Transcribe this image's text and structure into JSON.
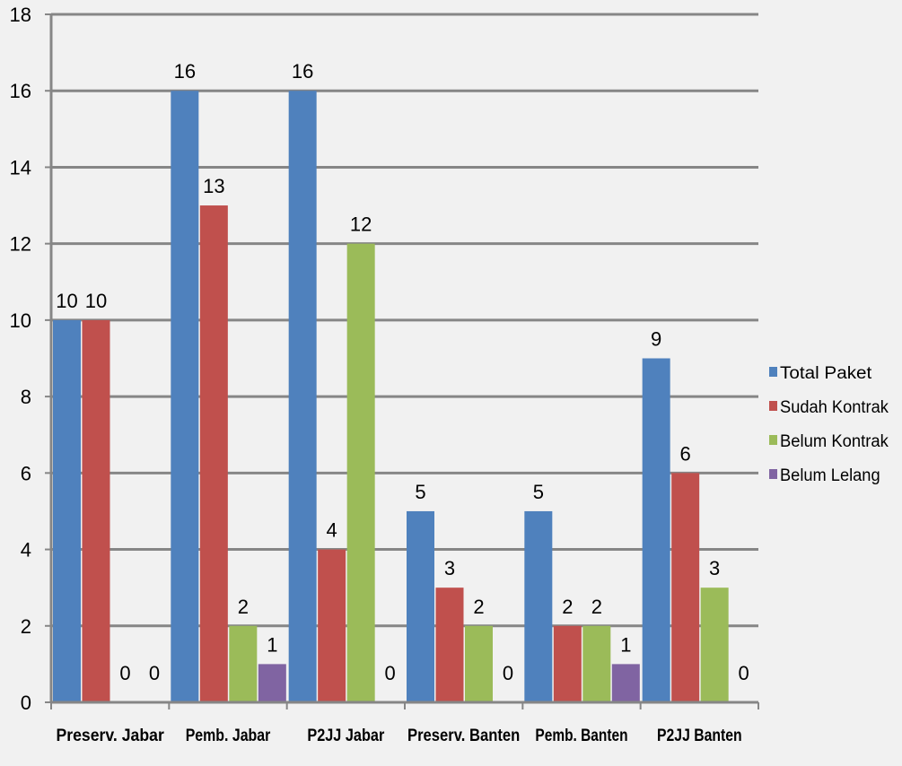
{
  "chart_data": {
    "type": "bar",
    "categories": [
      "Preserv. Jabar",
      "Pemb. Jabar",
      "P2JJ Jabar",
      "Preserv. Banten",
      "Pemb. Banten",
      "P2JJ Banten"
    ],
    "series": [
      {
        "name": "Total Paket",
        "color": "#4f81bd",
        "values": [
          10,
          16,
          16,
          5,
          5,
          9
        ]
      },
      {
        "name": "Sudah Kontrak",
        "color": "#c0504d",
        "values": [
          10,
          13,
          4,
          3,
          2,
          6
        ]
      },
      {
        "name": "Belum Kontrak",
        "color": "#9bbb59",
        "values": [
          0,
          2,
          12,
          2,
          2,
          3
        ]
      },
      {
        "name": "Belum Lelang",
        "color": "#8064a2",
        "values": [
          0,
          1,
          0,
          0,
          1,
          0
        ]
      }
    ],
    "data_labels": [
      [
        "10",
        "16",
        "16",
        "5",
        "5",
        "9"
      ],
      [
        "10",
        "13",
        "4",
        "3",
        "2",
        "6"
      ],
      [
        "0",
        "2",
        "12",
        "2",
        "2",
        "3"
      ],
      [
        "0",
        "1",
        "0",
        "0",
        "1",
        "0"
      ]
    ],
    "y_ticks": [
      "0",
      "2",
      "4",
      "6",
      "8",
      "10",
      "12",
      "14",
      "16",
      "18"
    ],
    "ylim": [
      0,
      18
    ],
    "grid": true,
    "legend_position": "right",
    "title": "",
    "xlabel": "",
    "ylabel": ""
  }
}
